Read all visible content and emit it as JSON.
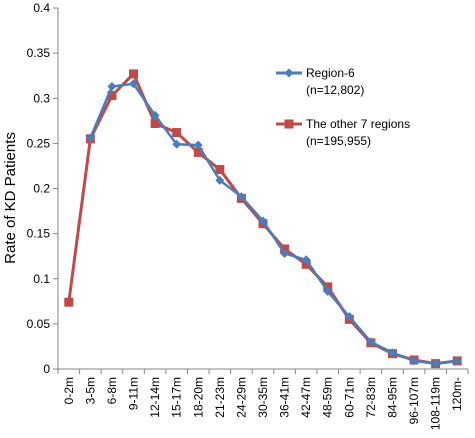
{
  "chart_data": {
    "type": "line",
    "title": "",
    "xlabel": "",
    "ylabel": "Rate of KD Patients",
    "ylim": [
      0,
      0.4
    ],
    "yticks": [
      "0",
      "0.05",
      "0.1",
      "0.15",
      "0.2",
      "0.25",
      "0.3",
      "0.35",
      "0.4"
    ],
    "grid": false,
    "legend_position": "right",
    "categories": [
      "0-2m",
      "3-5m",
      "6-8m",
      "9-11m",
      "12-14m",
      "15-17m",
      "18-20m",
      "21-23m",
      "24-29m",
      "30-35m",
      "36-41m",
      "42-47m",
      "48-59m",
      "60-71m",
      "72-83m",
      "84-95m",
      "96-107m",
      "108-119m",
      "120m-"
    ],
    "series": [
      {
        "name": "Region-6",
        "name_line2": "(n=12,802)",
        "color": "#4a7ebb",
        "marker": "diamond",
        "values": [
          null,
          0.256,
          0.313,
          0.316,
          0.281,
          0.249,
          0.248,
          0.209,
          0.191,
          0.164,
          0.128,
          0.121,
          0.086,
          0.058,
          0.03,
          0.018,
          0.009,
          0.006,
          0.009
        ]
      },
      {
        "name": "The other 7 regions",
        "name_line2": "(n=195,955)",
        "color": "#be4b48",
        "marker": "square",
        "values": [
          0.074,
          0.255,
          0.303,
          0.327,
          0.272,
          0.262,
          0.24,
          0.221,
          0.189,
          0.161,
          0.133,
          0.116,
          0.091,
          0.055,
          0.029,
          0.017,
          0.01,
          0.006,
          0.009
        ]
      }
    ]
  }
}
